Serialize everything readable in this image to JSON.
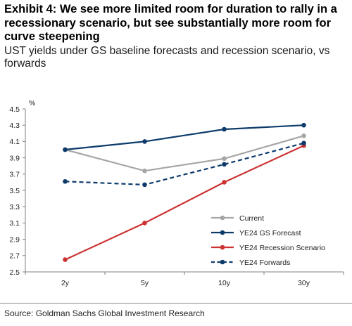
{
  "exhibit": {
    "title": "Exhibit 4: We see more limited room for duration to rally in a recessionary scenario, but see substantially more room for curve steepening",
    "subtitle": "UST yields under GS baseline forecasts and recession scenario, vs forwards"
  },
  "source": "Source: Goldman Sachs Global Investment Research",
  "chart_data": {
    "type": "line",
    "categories": [
      "2y",
      "5y",
      "10y",
      "30y"
    ],
    "ylabel": "%",
    "xlabel": "",
    "ylim": [
      2.5,
      4.5
    ],
    "yticks": [
      "4.5",
      "4.3",
      "4.1",
      "3.9",
      "3.7",
      "3.5",
      "3.3",
      "3.1",
      "2.9",
      "2.7",
      "2.5"
    ],
    "grid": false,
    "legend_position": "bottom-right",
    "series": [
      {
        "name": "Current",
        "values": [
          4.0,
          3.74,
          3.89,
          4.17
        ],
        "color": "#a6a6a6",
        "dash": false
      },
      {
        "name": "YE24 GS Forecast",
        "values": [
          4.0,
          4.1,
          4.25,
          4.3
        ],
        "color": "#0c3b6b",
        "dash": false
      },
      {
        "name": "YE24 Recession Scenario",
        "values": [
          2.65,
          3.1,
          3.6,
          4.05
        ],
        "color": "#cc3333",
        "dash": false
      },
      {
        "name": "YE24 Forwards",
        "values": [
          3.61,
          3.57,
          3.82,
          4.08
        ],
        "color": "#0c3b6b",
        "dash": true
      }
    ]
  }
}
